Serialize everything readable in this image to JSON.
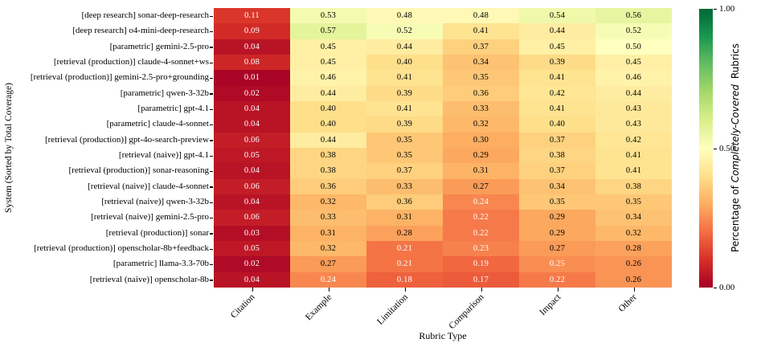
{
  "chart_data": {
    "type": "heatmap",
    "title": "",
    "xlabel": "Rubric Type",
    "ylabel": "System (Sorted by Total Coverage)",
    "columns": [
      "Citation",
      "Example",
      "Limitation",
      "Comparison",
      "Impact",
      "Other"
    ],
    "rows": [
      "[deep research] sonar-deep-research",
      "[deep research] o4-mini-deep-research",
      "[parametric] gemini-2.5-pro",
      "[retrieval (production)] claude-4-sonnet+ws",
      "[retrieval (production)] gemini-2.5-pro+grounding",
      "[parametric] qwen-3-32b",
      "[parametric] gpt-4.1",
      "[parametric] claude-4-sonnet",
      "[retrieval (production)] gpt-4o-search-preview",
      "[retrieval (naive)] gpt-4.1",
      "[retrieval (production)] sonar-reasoning",
      "[retrieval (naive)] claude-4-sonnet",
      "[retrieval (naive)] qwen-3-32b",
      "[retrieval (naive)] gemini-2.5-pro",
      "[retrieval (production)] sonar",
      "[retrieval (production)] openscholar-8b+feedback",
      "[parametric] llama-3.3-70b",
      "[retrieval (naive)] openscholar-8b"
    ],
    "values": [
      [
        0.11,
        0.53,
        0.48,
        0.48,
        0.54,
        0.56
      ],
      [
        0.09,
        0.57,
        0.52,
        0.41,
        0.44,
        0.52
      ],
      [
        0.04,
        0.45,
        0.44,
        0.37,
        0.45,
        0.5
      ],
      [
        0.08,
        0.45,
        0.4,
        0.34,
        0.39,
        0.45
      ],
      [
        0.01,
        0.46,
        0.41,
        0.35,
        0.41,
        0.46
      ],
      [
        0.02,
        0.44,
        0.39,
        0.36,
        0.42,
        0.44
      ],
      [
        0.04,
        0.4,
        0.41,
        0.33,
        0.41,
        0.43
      ],
      [
        0.04,
        0.4,
        0.39,
        0.32,
        0.4,
        0.43
      ],
      [
        0.06,
        0.44,
        0.35,
        0.3,
        0.37,
        0.42
      ],
      [
        0.05,
        0.38,
        0.35,
        0.29,
        0.38,
        0.41
      ],
      [
        0.04,
        0.38,
        0.37,
        0.31,
        0.37,
        0.41
      ],
      [
        0.06,
        0.36,
        0.33,
        0.27,
        0.34,
        0.38
      ],
      [
        0.04,
        0.32,
        0.36,
        0.24,
        0.35,
        0.35
      ],
      [
        0.06,
        0.33,
        0.31,
        0.22,
        0.29,
        0.34
      ],
      [
        0.03,
        0.31,
        0.28,
        0.22,
        0.29,
        0.32
      ],
      [
        0.05,
        0.32,
        0.21,
        0.23,
        0.27,
        0.28
      ],
      [
        0.02,
        0.27,
        0.21,
        0.19,
        0.25,
        0.26
      ],
      [
        0.04,
        0.24,
        0.18,
        0.17,
        0.22,
        0.26
      ]
    ],
    "vmin": 0.0,
    "vmax": 1.0,
    "grid": false,
    "colormap": "RdYlGn",
    "colormap_anchors": [
      "#a50026",
      "#d73027",
      "#f46d43",
      "#fdae61",
      "#fee08b",
      "#ffffbf",
      "#d9ef8b",
      "#a6d96a",
      "#66bd63",
      "#1a9850",
      "#006837"
    ],
    "annotation_text_colors": {
      "light": "#ffffff",
      "dark": "#000000"
    },
    "colorbar": {
      "position": "right",
      "label_prefix": "Percentage of ",
      "label_italic": "Completely-Covered",
      "label_suffix": " Rubrics",
      "tick_labels": [
        "1.00",
        "0.50",
        "0.00"
      ],
      "tick_values": [
        1.0,
        0.5,
        0.0
      ]
    }
  }
}
